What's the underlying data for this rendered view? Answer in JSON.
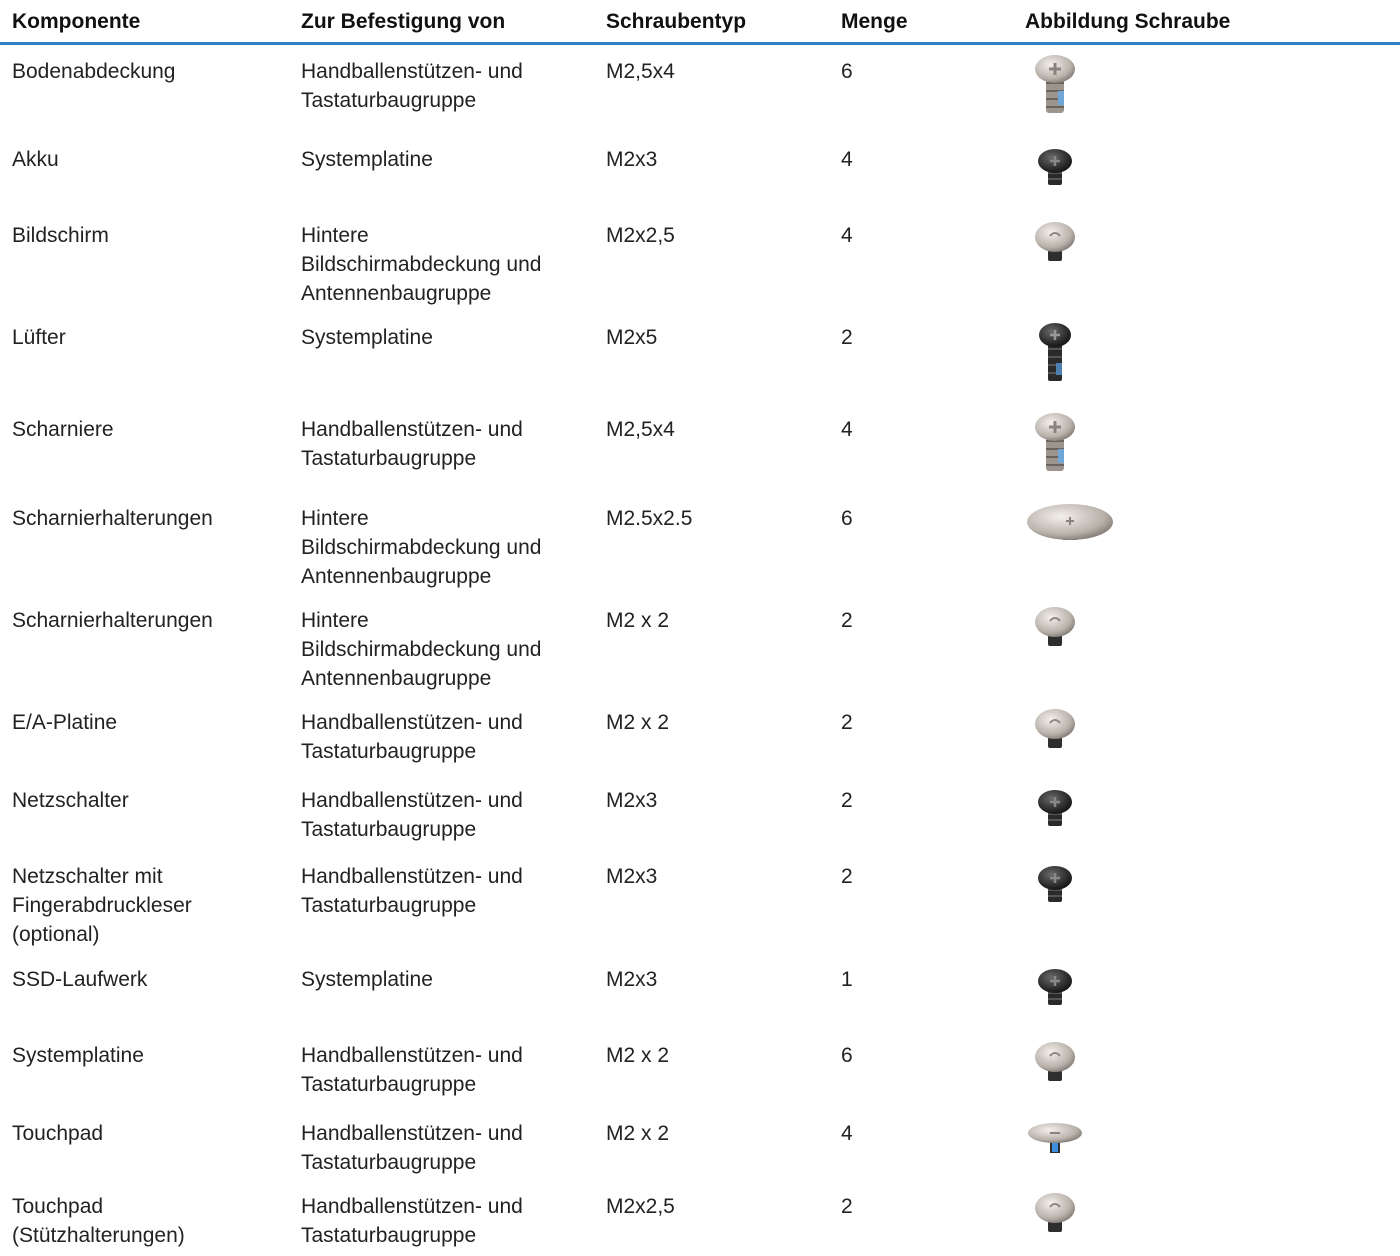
{
  "table": {
    "header": [
      "Komponente",
      "Zur Befestigung von",
      "Schraubentyp",
      "Menge",
      "Abbildung Schraube"
    ],
    "rows": [
      [
        "Bodenabdeckung",
        "Handballenstützen- und Tastaturbaugruppe",
        "M2,5x4",
        "6"
      ],
      [
        "Akku",
        "Systemplatine",
        "M2x3",
        "4"
      ],
      [
        "Bildschirm",
        "Hintere Bildschirmabdeckung und Antennenbaugruppe",
        "M2x2,5",
        "4"
      ],
      [
        "Lüfter",
        "Systemplatine",
        "M2x5",
        "2"
      ],
      [
        "Scharniere",
        "Handballenstützen- und Tastaturbaugruppe",
        "M2,5x4",
        "4"
      ],
      [
        "Scharnierhalterungen",
        "Hintere Bildschirmabdeckung und Antennenbaugruppe",
        "M2.5x2.5",
        "6"
      ],
      [
        "Scharnierhalterungen",
        "Hintere Bildschirmabdeckung und Antennenbaugruppe",
        "M2 x 2",
        "2"
      ],
      [
        "E/A-Platine",
        "Handballenstützen- und Tastaturbaugruppe",
        "M2 x 2",
        "2"
      ],
      [
        "Netzschalter",
        "Handballenstützen- und Tastaturbaugruppe",
        "M2x3",
        "2"
      ],
      [
        "Netzschalter mit Fingerabdruckleser (optional)",
        "Handballenstützen- und Tastaturbaugruppe",
        "M2x3",
        "2"
      ],
      [
        "SSD-Laufwerk",
        "Systemplatine",
        "M2x3",
        "1"
      ],
      [
        "Systemplatine",
        "Handballenstützen- und Tastaturbaugruppe",
        "M2 x 2",
        "6"
      ],
      [
        "Touchpad",
        "Handballenstützen- und Tastaturbaugruppe",
        "M2 x 2",
        "4"
      ],
      [
        "Touchpad (Stützhalterungen)",
        "Handballenstützen- und Tastaturbaugruppe",
        "M2x2,5",
        "2"
      ]
    ]
  }
}
